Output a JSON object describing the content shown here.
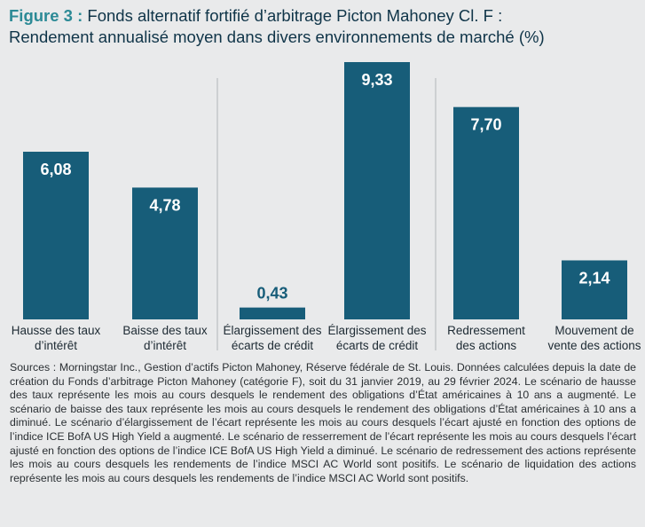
{
  "title": {
    "prefix": "Figure 3 :",
    "line1": " Fonds alternatif fortifié d’arbitrage Picton Mahoney Cl. F :",
    "line2": "Rendement annualisé moyen dans divers environnements de marché (%)"
  },
  "chart_data": {
    "type": "bar",
    "title": "Rendement annualisé moyen dans divers environnements de marché (%)",
    "categories": [
      [
        "Hausse des taux",
        "d’intérêt"
      ],
      [
        "Baisse des taux",
        "d’intérêt"
      ],
      [
        "Élargissement des",
        "écarts de crédit"
      ],
      [
        "Élargissement des",
        "écarts de crédit"
      ],
      [
        "Redressement",
        "des actions"
      ],
      [
        "Mouvement de",
        "vente des actions"
      ]
    ],
    "values": [
      6.08,
      4.78,
      0.43,
      9.33,
      7.7,
      2.14
    ],
    "value_labels": [
      "6,08",
      "4,78",
      "0,43",
      "9,33",
      "7,70",
      "2,14"
    ],
    "ylim": [
      0,
      9.33
    ],
    "grid": false,
    "bar_color": "#175d79",
    "group_separators": true
  },
  "sources": "Sources : Morningstar Inc., Gestion d’actifs Picton Mahoney, Réserve fédérale de St. Louis. Données calculées depuis la date de création du Fonds d’arbitrage Picton Mahoney (catégorie F), soit du 31 janvier 2019, au 29 février 2024. Le scénario de hausse des taux représente les mois au cours desquels le rendement des obligations d’État américaines à 10 ans a augmenté. Le scénario de baisse des taux représente les mois au cours desquels le rendement des obligations d’État américaines à 10 ans a diminué.  Le scénario d’élargissement de l’écart représente les mois au cours desquels l’écart ajusté en fonction des options de l’indice ICE BofA US High Yield a augmenté. Le scénario de resserrement de l’écart représente les mois au cours desquels l’écart ajusté en fonction des options de l’indice ICE BofA US High Yield a diminué. Le scénario de redressement des actions représente les mois au cours desquels les rendements de l’indice MSCI AC World sont positifs. Le scénario de liquidation des actions représente les mois au cours desquels les rendements de l’indice MSCI AC World sont positifs."
}
